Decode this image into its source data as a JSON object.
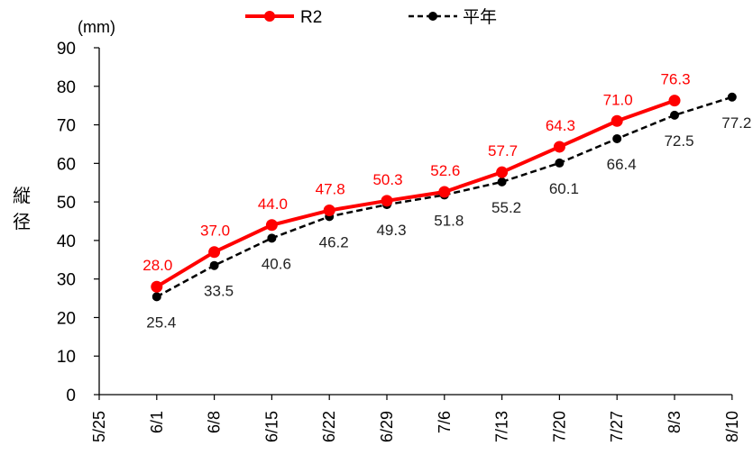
{
  "chart_data": {
    "type": "line",
    "ylabel": "縦径",
    "unit": "(mm)",
    "ylim": [
      0,
      90
    ],
    "yticks": [
      0,
      10,
      20,
      30,
      40,
      50,
      60,
      70,
      80,
      90
    ],
    "categories": [
      "5/25",
      "6/1",
      "6/8",
      "6/15",
      "6/22",
      "6/29",
      "7/6",
      "7/13",
      "7/20",
      "7/27",
      "8/3",
      "8/10"
    ],
    "legend_position": "top",
    "series": [
      {
        "name": "R2",
        "color": "#ff0000",
        "style": "solid",
        "values": [
          null,
          28.0,
          37.0,
          44.0,
          47.8,
          50.3,
          52.6,
          57.7,
          64.3,
          71.0,
          76.3,
          null
        ],
        "labels": [
          null,
          "28.0",
          "37.0",
          "44.0",
          "47.8",
          "50.3",
          "52.6",
          "57.7",
          "64.3",
          "71.0",
          "76.3",
          null
        ]
      },
      {
        "name": "平年",
        "color": "#000000",
        "style": "dashed",
        "values": [
          null,
          25.4,
          33.5,
          40.6,
          46.2,
          49.3,
          51.8,
          55.2,
          60.1,
          66.4,
          72.5,
          77.2
        ],
        "labels": [
          null,
          "25.4",
          "33.5",
          "40.6",
          "46.2",
          "49.3",
          "51.8",
          "55.2",
          "60.1",
          "66.4",
          "72.5",
          "77.2"
        ]
      }
    ]
  }
}
